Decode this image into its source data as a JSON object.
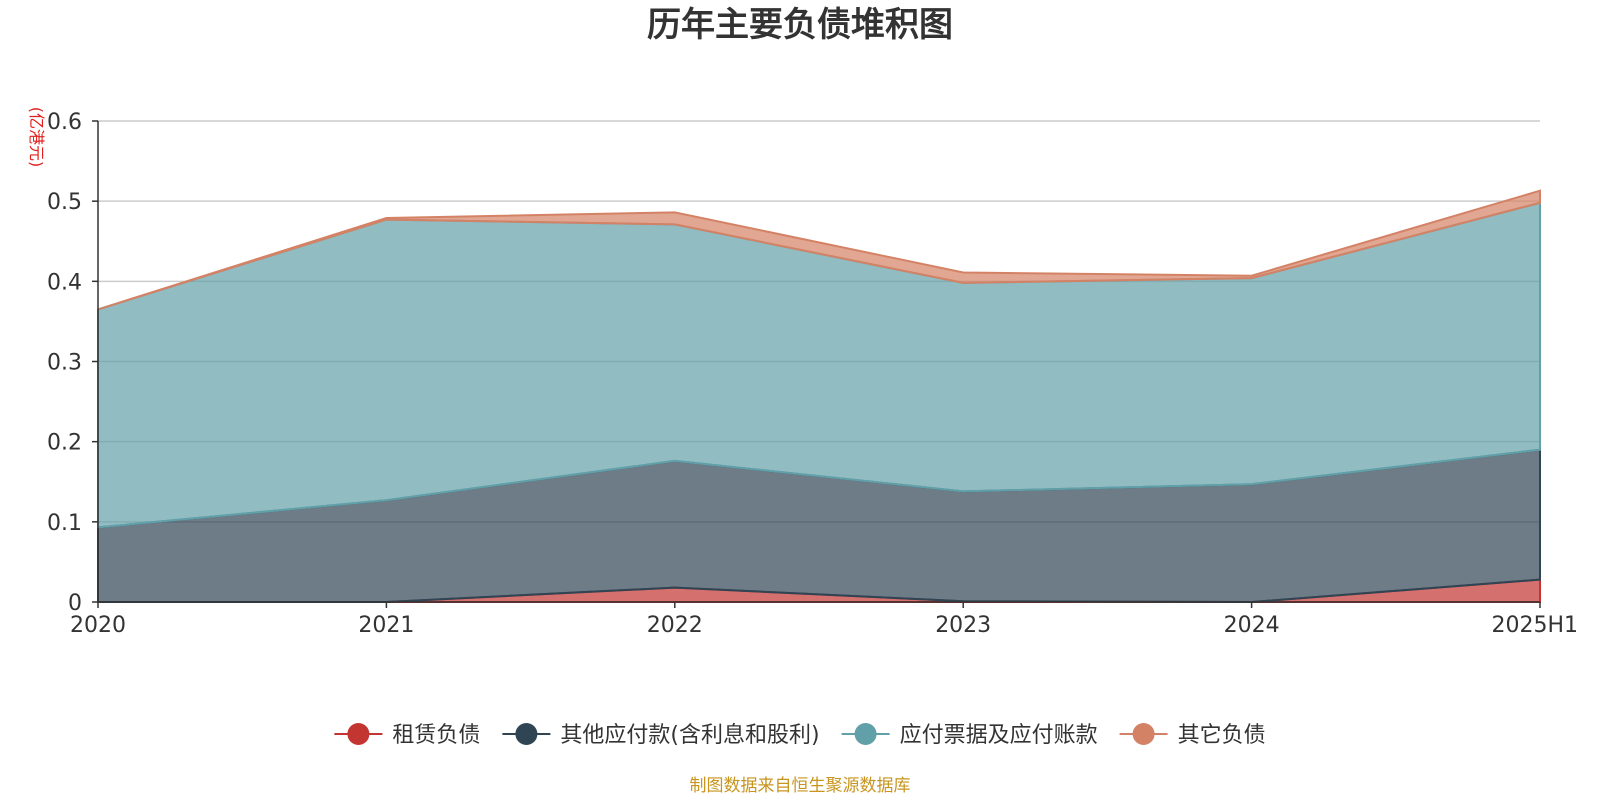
{
  "chart_data": {
    "type": "area",
    "stacked": true,
    "title": "历年主要负债堆积图",
    "unit_label": "(亿港元)",
    "categories": [
      "2020",
      "2021",
      "2022",
      "2023",
      "2024",
      "2025H1"
    ],
    "ylim": [
      0,
      0.6
    ],
    "yticks": [
      0,
      0.1,
      0.2,
      0.3,
      0.4,
      0.5,
      0.6
    ],
    "ytick_labels": [
      "0",
      "0.1",
      "0.2",
      "0.3",
      "0.4",
      "0.5",
      "0.6"
    ],
    "grid": true,
    "legend_position": "bottom-center",
    "series": [
      {
        "name": "租赁负债",
        "color": "#c23531",
        "values": [
          0.0,
          0.0,
          0.018,
          0.001,
          0.0,
          0.028
        ]
      },
      {
        "name": "其他应付款(含利息和股利)",
        "color": "#2f4554",
        "values": [
          0.093,
          0.127,
          0.158,
          0.137,
          0.147,
          0.162
        ]
      },
      {
        "name": "应付票据及应付账款",
        "color": "#61a0a8",
        "values": [
          0.272,
          0.35,
          0.295,
          0.26,
          0.257,
          0.308
        ]
      },
      {
        "name": "其它负债",
        "color": "#d48265",
        "values": [
          0.0,
          0.002,
          0.015,
          0.013,
          0.003,
          0.015
        ]
      }
    ],
    "source": "制图数据来自恒生聚源数据库"
  }
}
